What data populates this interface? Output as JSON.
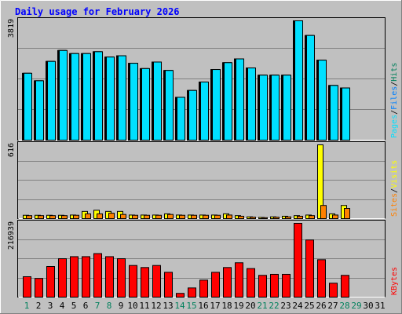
{
  "chart_data": {
    "type": "bar",
    "title": "Daily usage for February 2026",
    "x": {
      "days": [
        1,
        2,
        3,
        4,
        5,
        6,
        7,
        8,
        9,
        10,
        11,
        12,
        13,
        14,
        15,
        16,
        17,
        18,
        19,
        20,
        21,
        22,
        23,
        24,
        25,
        26,
        27,
        28,
        29,
        30,
        31
      ],
      "labels": [
        "1",
        "2",
        "3",
        "4",
        "5",
        "6",
        "7",
        "8",
        "9",
        "10",
        "11",
        "12",
        "13",
        "14",
        "15",
        "16",
        "17",
        "18",
        "19",
        "20",
        "21",
        "22",
        "23",
        "24",
        "25",
        "26",
        "27",
        "28",
        "29",
        "30",
        "31"
      ],
      "weekend_days": [
        1,
        7,
        8,
        14,
        15,
        21,
        22,
        28,
        29
      ]
    },
    "panels": [
      {
        "id": "hits-files-pages",
        "ymax": 3819,
        "ymax_label": "3819",
        "legend": [
          {
            "label": "Pages",
            "color": "#00E0FF"
          },
          {
            "label": "/",
            "color": "#000000"
          },
          {
            "label": "Files",
            "color": "#0080FF"
          },
          {
            "label": "/",
            "color": "#000000"
          },
          {
            "label": "Hits",
            "color": "#00805C"
          }
        ],
        "series": [
          {
            "name": "Hits",
            "color": "#00805C",
            "days": [
              1,
              2,
              3,
              4,
              5,
              6,
              7,
              8,
              9,
              10,
              11,
              12,
              13,
              14,
              15,
              16,
              17,
              18,
              19,
              20,
              21,
              22,
              23,
              24,
              25,
              26,
              27,
              28
            ],
            "values": [
              2140,
              1900,
              2520,
              2870,
              2770,
              2770,
              2830,
              2660,
              2700,
              2460,
              2290,
              2500,
              2230,
              1370,
              1590,
              1860,
              2260,
              2480,
              2600,
              2310,
              2080,
              2080,
              2080,
              3819,
              3350,
              2560,
              1750,
              1670
            ]
          },
          {
            "name": "Files",
            "color": "#0080FF",
            "days": [
              1,
              2,
              3,
              4,
              5,
              6,
              7,
              8,
              9,
              10,
              11,
              12,
              13,
              14,
              15,
              16,
              17,
              18,
              19,
              20,
              21,
              22,
              23,
              24,
              25,
              26,
              27,
              28
            ],
            "values": [
              2140,
              1900,
              2520,
              2870,
              2770,
              2770,
              2830,
              2660,
              2700,
              2460,
              2290,
              2500,
              2230,
              1370,
              1590,
              1860,
              2260,
              2480,
              2600,
              2310,
              2080,
              2080,
              2080,
              3819,
              3350,
              2560,
              1750,
              1670
            ]
          },
          {
            "name": "Pages",
            "color": "#00E0FF",
            "days": [
              1,
              2,
              3,
              4,
              5,
              6,
              7,
              8,
              9,
              10,
              11,
              12,
              13,
              14,
              15,
              16,
              17,
              18,
              19,
              20,
              21,
              22,
              23,
              24,
              25,
              26,
              27,
              28
            ],
            "values": [
              2140,
              1900,
              2520,
              2870,
              2770,
              2770,
              2830,
              2660,
              2700,
              2460,
              2290,
              2500,
              2230,
              1370,
              1590,
              1860,
              2260,
              2480,
              2600,
              2310,
              2080,
              2080,
              2080,
              3819,
              3350,
              2560,
              1750,
              1670
            ]
          }
        ]
      },
      {
        "id": "visits-sites",
        "ymax": 616,
        "ymax_label": "616",
        "legend": [
          {
            "label": "Sites",
            "color": "#FF8000"
          },
          {
            "label": "/",
            "color": "#000000"
          },
          {
            "label": "Visits",
            "color": "#FFFF00"
          }
        ],
        "series": [
          {
            "name": "Visits",
            "color": "#FFFF00",
            "days": [
              1,
              2,
              3,
              4,
              5,
              6,
              7,
              8,
              9,
              10,
              11,
              12,
              13,
              14,
              15,
              16,
              17,
              18,
              19,
              20,
              21,
              22,
              23,
              24,
              25,
              26,
              27,
              28
            ],
            "values": [
              28,
              28,
              28,
              28,
              30,
              60,
              70,
              60,
              60,
              30,
              30,
              30,
              40,
              30,
              30,
              30,
              30,
              40,
              25,
              15,
              10,
              15,
              20,
              25,
              30,
              616,
              40,
              110
            ]
          },
          {
            "name": "Sites",
            "color": "#FF8000",
            "days": [
              1,
              2,
              3,
              4,
              5,
              6,
              7,
              8,
              9,
              10,
              11,
              12,
              13,
              14,
              15,
              16,
              17,
              18,
              19,
              20,
              21,
              22,
              23,
              24,
              25,
              26,
              27,
              28
            ],
            "values": [
              25,
              25,
              25,
              25,
              28,
              40,
              40,
              45,
              35,
              28,
              28,
              28,
              35,
              28,
              28,
              28,
              28,
              30,
              20,
              12,
              8,
              12,
              15,
              20,
              25,
              110,
              30,
              85
            ]
          }
        ]
      },
      {
        "id": "kbytes",
        "ymax": 216939,
        "ymax_label": "216939",
        "legend": [
          {
            "label": "KBytes",
            "color": "#FF0000"
          }
        ],
        "series": [
          {
            "name": "KBytes",
            "color": "#FF0000",
            "days": [
              1,
              2,
              3,
              4,
              5,
              6,
              7,
              8,
              9,
              10,
              11,
              12,
              13,
              14,
              15,
              16,
              17,
              18,
              19,
              20,
              21,
              22,
              23,
              24,
              25,
              26,
              27,
              28
            ],
            "values": [
              60000,
              55000,
              90000,
              113000,
              119000,
              119000,
              128000,
              119000,
              113000,
              93000,
              87000,
              93000,
              73000,
              11000,
              27000,
              50000,
              73000,
              87000,
              101000,
              84000,
              64000,
              67000,
              67000,
              216939,
              168000,
              110000,
              41000,
              64000
            ]
          }
        ]
      }
    ],
    "grid": true
  }
}
